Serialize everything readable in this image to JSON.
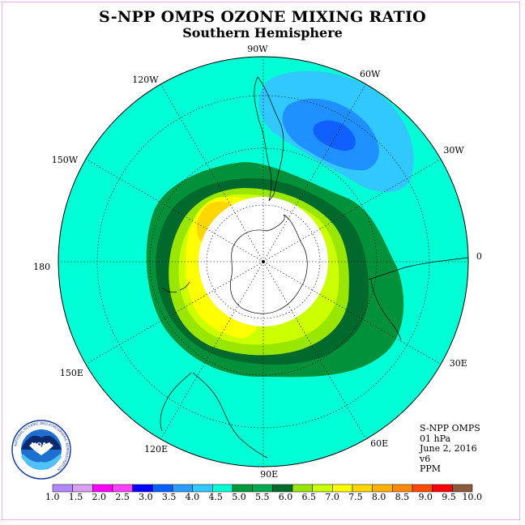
{
  "title": "S-NPP OMPS OZONE MIXING RATIO",
  "subtitle": "Southern Hemisphere",
  "longitude_labels": [
    {
      "lon": 90,
      "text": "90W"
    },
    {
      "lon": 60,
      "text": "60W"
    },
    {
      "lon": 30,
      "text": "30W"
    },
    {
      "lon": 0,
      "text": "0"
    },
    {
      "lon": -30,
      "text": "30E"
    },
    {
      "lon": -60,
      "text": "60E"
    },
    {
      "lon": -90,
      "text": "90E"
    },
    {
      "lon": -120,
      "text": "120E"
    },
    {
      "lon": -150,
      "text": "150E"
    },
    {
      "lon": 180,
      "text": "180"
    },
    {
      "lon": 150,
      "text": "150W"
    },
    {
      "lon": 120,
      "text": "120W"
    }
  ],
  "info": {
    "instrument": "S-NPP OMPS",
    "level": "01 hPa",
    "date": "June 2, 2016",
    "version": "v6",
    "units": "PPM"
  },
  "logo": {
    "text": "NOAA",
    "ring_text": "NATIONAL OCEANIC AND ATMOSPHERIC ADMINISTRATION"
  },
  "colorbar": {
    "colors": [
      "#b388ff",
      "#d9a0f2",
      "#ff00ff",
      "#ff40ff",
      "#0000ff",
      "#0a5fff",
      "#2a9cff",
      "#30c8ff",
      "#00ffd5",
      "#009a3e",
      "#00a84f",
      "#006b2a",
      "#9ae600",
      "#ccff00",
      "#ffff00",
      "#ffd700",
      "#ffb000",
      "#ff8a00",
      "#ff4a00",
      "#ff0000",
      "#8b5a3c"
    ],
    "labels": [
      "1.0",
      "1.5",
      "2.0",
      "2.5",
      "3.0",
      "3.5",
      "4.0",
      "4.5",
      "5.0",
      "5.5",
      "6.0",
      "6.5",
      "7.0",
      "7.5",
      "8.0",
      "8.5",
      "9.0",
      "9.5",
      "10.0"
    ]
  },
  "map_colors": {
    "background": "#00ffd5",
    "green_dark": "#00692c",
    "green_mid": "#00913a",
    "lime": "#99e600",
    "yellow_green": "#ccff00",
    "yellow": "#ffff00",
    "gold": "#ffd700",
    "blue_light": "#30c8ff",
    "blue_mid": "#1f90ff",
    "blue_dark": "#1060ff"
  }
}
